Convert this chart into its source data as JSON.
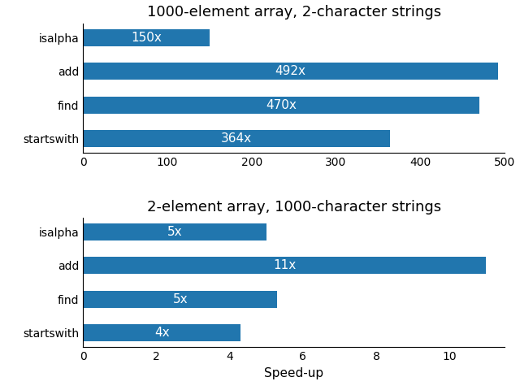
{
  "subplot1": {
    "title": "1000-element array, 2-character strings",
    "categories": [
      "isalpha",
      "add",
      "find",
      "startswith"
    ],
    "values": [
      150,
      492,
      470,
      364
    ],
    "labels": [
      "150x",
      "492x",
      "470x",
      "364x"
    ],
    "xlim": [
      0,
      500
    ],
    "xticks": [
      0,
      100,
      200,
      300,
      400,
      500
    ]
  },
  "subplot2": {
    "title": "2-element array, 1000-character strings",
    "categories": [
      "isalpha",
      "add",
      "find",
      "startswith"
    ],
    "values": [
      5,
      11,
      5.3,
      4.3
    ],
    "labels": [
      "5x",
      "11x",
      "5x",
      "4x"
    ],
    "xlim": [
      0,
      11.5
    ],
    "xticks": [
      0,
      2,
      4,
      6,
      8,
      10
    ]
  },
  "bar_color": "#2176ae",
  "xlabel": "Speed-up",
  "label_color": "white",
  "label_fontsize": 11,
  "title_fontsize": 13
}
